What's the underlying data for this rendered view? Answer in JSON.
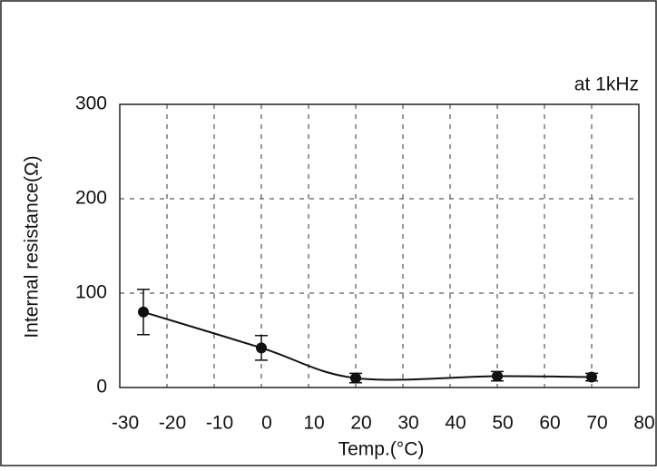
{
  "chart_data": {
    "type": "errorbar-line",
    "annotation": "at 1kHz",
    "xlabel": "Temp.(°C)",
    "ylabel": "Internal resistance(Ω)",
    "x": [
      -25,
      0,
      20,
      50,
      70
    ],
    "values": [
      80,
      42,
      10,
      12,
      11
    ],
    "yerr": [
      24,
      13,
      5,
      5,
      4
    ],
    "color": "#111111",
    "xlim": [
      -30,
      80
    ],
    "xticks": [
      -30,
      -20,
      -10,
      0,
      10,
      20,
      30,
      40,
      50,
      60,
      70,
      80
    ],
    "ylim": [
      0,
      300
    ],
    "yticks": [
      0,
      100,
      200,
      300
    ],
    "grid": true
  }
}
